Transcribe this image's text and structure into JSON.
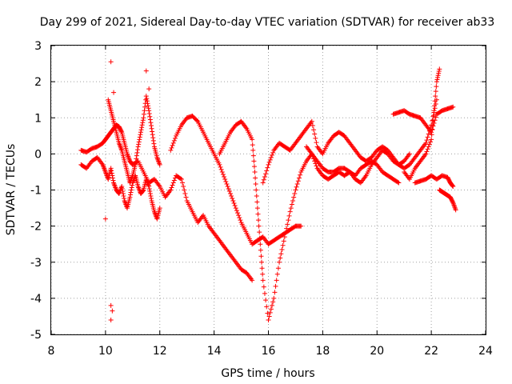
{
  "chart_data": {
    "type": "scatter",
    "title": "Day 299 of 2021, Sidereal Day-to-day VTEC variation (SDTVAR) for receiver ab33",
    "xlabel": "GPS time / hours",
    "ylabel": "SDTVAR / TECUs",
    "xlim": [
      8,
      24
    ],
    "ylim": [
      -5,
      3
    ],
    "xticks": [
      8,
      10,
      12,
      14,
      16,
      18,
      20,
      22,
      24
    ],
    "yticks": [
      -5,
      -4,
      -3,
      -2,
      -1,
      0,
      1,
      2,
      3
    ],
    "grid": true,
    "marker": "plus",
    "color": "#ff0000",
    "series": [
      {
        "name": "track-1",
        "x": [
          9.1,
          9.3,
          9.5,
          9.7,
          9.9,
          10.0,
          10.1,
          10.2,
          10.3,
          10.4,
          10.5,
          10.6,
          10.7,
          10.8,
          10.9,
          11.0,
          11.2,
          11.4,
          11.6,
          11.8,
          12.0,
          12.2,
          12.4,
          12.6,
          12.8,
          13.0,
          13.2,
          13.4,
          13.6,
          13.8,
          14.0,
          14.2,
          14.4,
          14.6,
          14.8,
          15.0,
          15.2,
          15.4
        ],
        "y": [
          0.1,
          0.05,
          0.15,
          0.2,
          0.3,
          0.4,
          0.5,
          0.6,
          0.7,
          0.8,
          0.75,
          0.6,
          0.3,
          0.0,
          -0.2,
          -0.3,
          -0.2,
          -0.5,
          -0.8,
          -0.7,
          -0.9,
          -1.2,
          -1.0,
          -0.6,
          -0.7,
          -1.3,
          -1.6,
          -1.9,
          -1.7,
          -2.0,
          -2.2,
          -2.4,
          -2.6,
          -2.8,
          -3.0,
          -3.2,
          -3.3,
          -3.5
        ]
      },
      {
        "name": "track-2",
        "x": [
          9.1,
          9.3,
          9.5,
          9.7,
          9.9,
          10.0,
          10.1,
          10.2,
          10.3,
          10.4,
          10.5,
          10.6,
          10.7,
          10.8,
          10.9,
          11.0,
          11.1,
          11.2,
          11.3,
          11.4,
          11.5,
          11.6,
          11.7,
          11.8,
          11.9,
          12.0
        ],
        "y": [
          -0.3,
          -0.4,
          -0.2,
          -0.1,
          -0.3,
          -0.5,
          -0.7,
          -0.4,
          -0.8,
          -1.0,
          -1.1,
          -0.9,
          -1.3,
          -1.5,
          -1.2,
          -0.8,
          -0.6,
          -0.9,
          -1.1,
          -1.0,
          -0.7,
          -0.9,
          -1.3,
          -1.6,
          -1.8,
          -1.5
        ]
      },
      {
        "name": "track-3",
        "x": [
          10.1,
          10.2,
          10.3,
          10.4,
          10.5,
          10.6,
          10.7,
          10.8,
          10.9,
          11.0,
          11.1,
          11.2,
          11.3,
          11.4,
          11.5,
          11.6,
          11.7,
          11.8,
          11.9,
          12.0
        ],
        "y": [
          1.5,
          1.2,
          0.9,
          0.6,
          0.3,
          0.1,
          -0.2,
          -0.5,
          -0.8,
          -0.6,
          -0.3,
          0.2,
          0.6,
          1.0,
          1.6,
          1.2,
          0.7,
          0.2,
          -0.1,
          -0.3
        ]
      },
      {
        "name": "track-4",
        "x": [
          12.4,
          12.6,
          12.8,
          13.0,
          13.2,
          13.4,
          13.6,
          13.8,
          14.0,
          14.2,
          14.4,
          14.6,
          14.8,
          15.0,
          15.2,
          15.4,
          15.6,
          15.8,
          16.0,
          16.2,
          16.4,
          16.6,
          16.8,
          17.0,
          17.2
        ],
        "y": [
          0.1,
          0.5,
          0.8,
          1.0,
          1.05,
          0.9,
          0.6,
          0.3,
          0.0,
          -0.3,
          -0.7,
          -1.1,
          -1.5,
          -1.9,
          -2.2,
          -2.5,
          -2.4,
          -2.3,
          -2.5,
          -2.4,
          -2.3,
          -2.2,
          -2.1,
          -2.0,
          -2.0
        ]
      },
      {
        "name": "track-5",
        "x": [
          14.2,
          14.4,
          14.6,
          14.8,
          15.0,
          15.2,
          15.4,
          15.5,
          15.6,
          15.7,
          15.8,
          16.0,
          16.2,
          16.4,
          16.6,
          16.8,
          17.0,
          17.2,
          17.4,
          17.6,
          17.8,
          18.0,
          18.2,
          18.4,
          18.6,
          18.8,
          19.0,
          19.2,
          19.4,
          19.6,
          19.8,
          20.0,
          20.2,
          20.4,
          20.6,
          20.8
        ],
        "y": [
          0.0,
          0.3,
          0.6,
          0.8,
          0.9,
          0.7,
          0.4,
          -0.5,
          -1.5,
          -2.5,
          -3.5,
          -4.6,
          -4.0,
          -3.0,
          -2.3,
          -1.6,
          -1.0,
          -0.5,
          -0.2,
          0.0,
          -0.4,
          -0.6,
          -0.7,
          -0.6,
          -0.5,
          -0.6,
          -0.5,
          -0.6,
          -0.4,
          -0.3,
          -0.2,
          -0.3,
          -0.5,
          -0.6,
          -0.7,
          -0.8
        ]
      },
      {
        "name": "track-6",
        "x": [
          15.8,
          16.0,
          16.2,
          16.4,
          16.6,
          16.8,
          17.0,
          17.2,
          17.4,
          17.6,
          17.8,
          18.0,
          18.2,
          18.4,
          18.6,
          18.8,
          19.0,
          19.2,
          19.4,
          19.6,
          19.8,
          20.0,
          20.2,
          20.4,
          20.6,
          20.8,
          21.0,
          21.2
        ],
        "y": [
          -0.8,
          -0.3,
          0.1,
          0.3,
          0.2,
          0.1,
          0.3,
          0.5,
          0.7,
          0.9,
          0.2,
          0.0,
          0.3,
          0.5,
          0.6,
          0.5,
          0.3,
          0.1,
          -0.1,
          -0.2,
          -0.1,
          0.1,
          0.2,
          0.1,
          -0.1,
          -0.3,
          -0.2,
          0.0
        ]
      },
      {
        "name": "track-7",
        "x": [
          17.4,
          17.6,
          17.8,
          18.0,
          18.2,
          18.4,
          18.6,
          18.8,
          19.0,
          19.2,
          19.4,
          19.6,
          19.8,
          20.0,
          20.2,
          20.4,
          20.6,
          20.8,
          21.0,
          21.2,
          21.4,
          21.6,
          21.8,
          22.0,
          22.2
        ],
        "y": [
          0.2,
          0.0,
          -0.2,
          -0.4,
          -0.5,
          -0.5,
          -0.4,
          -0.4,
          -0.5,
          -0.7,
          -0.8,
          -0.6,
          -0.3,
          -0.1,
          0.1,
          0.0,
          -0.2,
          -0.3,
          -0.4,
          -0.3,
          -0.1,
          0.1,
          0.3,
          0.8,
          1.5
        ]
      },
      {
        "name": "track-8",
        "x": [
          20.6,
          20.8,
          21.0,
          21.2,
          21.4,
          21.6,
          21.8,
          22.0,
          22.2,
          22.4,
          22.6,
          22.8
        ],
        "y": [
          1.1,
          1.15,
          1.2,
          1.1,
          1.05,
          1.0,
          0.8,
          0.6,
          1.1,
          1.2,
          1.25,
          1.3
        ]
      },
      {
        "name": "track-9",
        "x": [
          21.0,
          21.2,
          21.4,
          21.6,
          21.8,
          22.0,
          22.1,
          22.2,
          22.3
        ],
        "y": [
          -0.5,
          -0.7,
          -0.4,
          -0.2,
          0.0,
          0.4,
          1.2,
          2.0,
          2.35
        ]
      },
      {
        "name": "track-10",
        "x": [
          21.4,
          21.6,
          21.8,
          22.0,
          22.2,
          22.4,
          22.6,
          22.7,
          22.8
        ],
        "y": [
          -0.8,
          -0.75,
          -0.7,
          -0.6,
          -0.7,
          -0.6,
          -0.65,
          -0.8,
          -0.9
        ]
      },
      {
        "name": "track-11",
        "x": [
          22.3,
          22.4,
          22.5,
          22.6,
          22.7,
          22.8,
          22.9
        ],
        "y": [
          -1.0,
          -1.05,
          -1.1,
          -1.15,
          -1.2,
          -1.35,
          -1.55
        ]
      },
      {
        "name": "outliers",
        "x": [
          10.2,
          10.2,
          10.2,
          10.0,
          11.5,
          11.6,
          10.3,
          10.25
        ],
        "y": [
          2.55,
          -4.2,
          -4.6,
          -1.8,
          2.3,
          1.8,
          1.7,
          -4.35
        ]
      }
    ]
  }
}
